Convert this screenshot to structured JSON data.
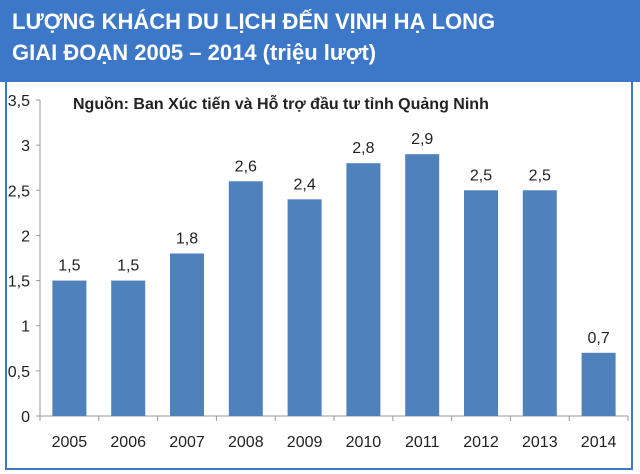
{
  "chart_data": {
    "type": "bar",
    "title": "LƯỢNG KHÁCH DU LỊCH ĐẾN VỊNH HẠ LONG",
    "subtitle": "GIAI ĐOẠN 2005 – 2014 (triệu lượt)",
    "source_note": "Nguồn: Ban Xúc tiến và Hỗ trợ đầu tư tỉnh Quảng Ninh",
    "categories": [
      "2005",
      "2006",
      "2007",
      "2008",
      "2009",
      "2010",
      "2011",
      "2012",
      "2013",
      "2014"
    ],
    "values": [
      1.5,
      1.5,
      1.8,
      2.6,
      2.4,
      2.8,
      2.9,
      2.5,
      2.5,
      0.7
    ],
    "value_labels": [
      "1,5",
      "1,5",
      "1,8",
      "2,6",
      "2,4",
      "2,8",
      "2,9",
      "2,5",
      "2,5",
      "0,7"
    ],
    "y_ticks": [
      "0",
      "0,5",
      "1",
      "1,5",
      "2",
      "2,5",
      "3",
      "3,5"
    ],
    "ylim": [
      0,
      3.5
    ],
    "xlabel": "",
    "ylabel": "",
    "grid": false,
    "legend": "none",
    "colors": {
      "bar": "#4f81bd",
      "header": "#3c78c7",
      "title_text": "#ffffff",
      "axis": "#999999"
    }
  }
}
